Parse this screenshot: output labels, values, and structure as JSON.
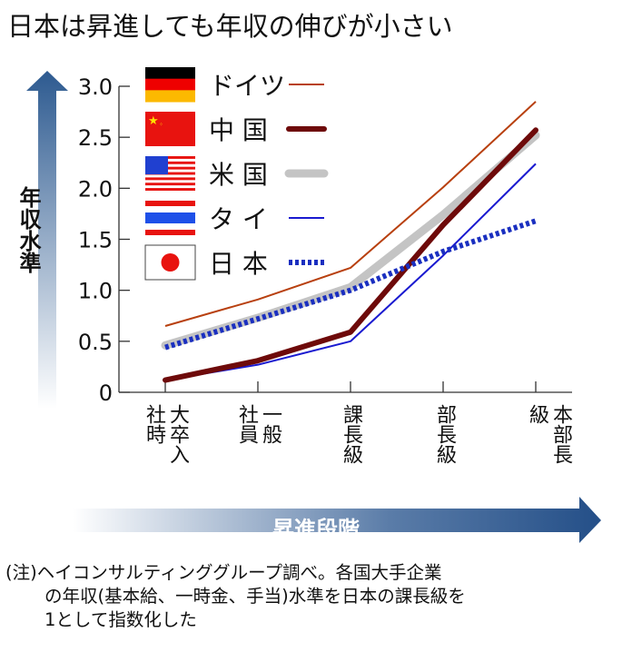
{
  "title": "日本は昇進しても年収の伸びが小さい",
  "note": [
    "(注)ヘイコンサルティンググループ調べ。各国大手企業",
    "の年収(基本給、一時金、手当)水準を日本の課長級を",
    "1として指数化した"
  ],
  "chart_data": {
    "type": "line",
    "title": "日本は昇進しても年収の伸びが小さい",
    "xlabel": "昇進段階",
    "ylabel": "年収水準",
    "categories": [
      "大卒入社時",
      "一般社員",
      "課長級",
      "部長級",
      "本部長級"
    ],
    "ylim": [
      0,
      3.0
    ],
    "yticks": [
      "0",
      "0.5",
      "1.0",
      "1.5",
      "2.0",
      "2.5",
      "3.0"
    ],
    "grid": false,
    "legend_position": "top-left",
    "series": [
      {
        "name": "ドイツ",
        "flag": "germany-flag",
        "color": "#b8400f",
        "style": "thin",
        "values": [
          0.65,
          0.91,
          1.22,
          2.01,
          2.85
        ]
      },
      {
        "name": "中 国",
        "flag": "china-flag",
        "color": "#6e0a0a",
        "style": "thick",
        "values": [
          0.12,
          0.31,
          0.59,
          1.64,
          2.57
        ]
      },
      {
        "name": "米 国",
        "flag": "usa-flag",
        "color": "#c4c4c4",
        "style": "thick",
        "values": [
          0.46,
          0.73,
          1.03,
          1.74,
          2.52
        ]
      },
      {
        "name": "タ イ",
        "flag": "thailand-flag",
        "color": "#1a1ad0",
        "style": "thin",
        "values": [
          0.12,
          0.27,
          0.5,
          1.34,
          2.24
        ]
      },
      {
        "name": "日 本",
        "flag": "japan-flag",
        "color": "#1a2fc0",
        "style": "dotted",
        "values": [
          0.44,
          0.72,
          1.0,
          1.38,
          1.68
        ]
      }
    ]
  }
}
